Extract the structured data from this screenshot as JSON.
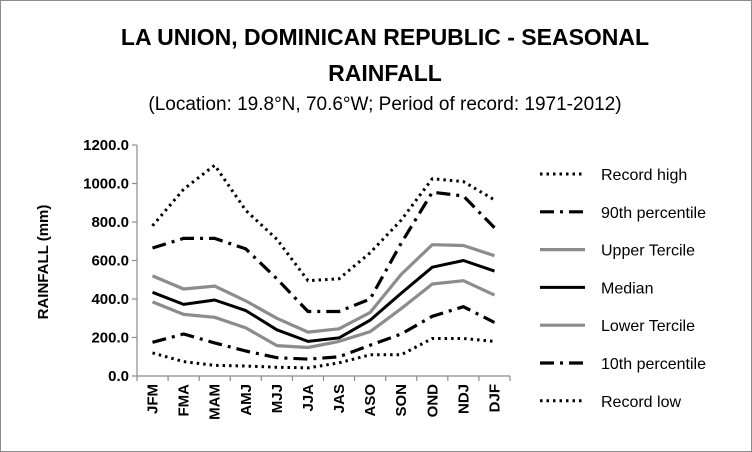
{
  "chart_data": {
    "type": "line",
    "title_line1": "LA UNION, DOMINICAN REPUBLIC - SEASONAL",
    "title_line2": "RAINFALL",
    "subtitle": "(Location: 19.8°N, 70.6°W; Period of record: 1971-2012)",
    "xlabel": "",
    "ylabel": "RAINFALL (mm)",
    "ylim": [
      0,
      1200
    ],
    "yticks": [
      "0.0",
      "200.0",
      "400.0",
      "600.0",
      "800.0",
      "1000.0",
      "1200.0"
    ],
    "categories": [
      "JFM",
      "FMA",
      "MAM",
      "AMJ",
      "MJJ",
      "JJA",
      "JAS",
      "ASO",
      "SON",
      "OND",
      "NDJ",
      "DJF"
    ],
    "legend_position": "right",
    "grid": false,
    "series": [
      {
        "name": "Record high",
        "color": "#000000",
        "style": "dotted",
        "values": [
          780,
          970,
          1095,
          860,
          710,
          495,
          505,
          640,
          810,
          1025,
          1010,
          915
        ]
      },
      {
        "name": "90th percentile",
        "color": "#000000",
        "style": "dashdot",
        "values": [
          665,
          715,
          715,
          660,
          505,
          335,
          335,
          400,
          690,
          955,
          935,
          770
        ]
      },
      {
        "name": "Upper Tercile",
        "color": "#8c8c8c",
        "style": "solid",
        "values": [
          520,
          452,
          467,
          390,
          300,
          228,
          245,
          330,
          528,
          682,
          678,
          625
        ]
      },
      {
        "name": "Median",
        "color": "#000000",
        "style": "solid",
        "values": [
          435,
          372,
          395,
          340,
          240,
          180,
          198,
          290,
          430,
          565,
          600,
          545
        ]
      },
      {
        "name": "Lower Tercile",
        "color": "#8c8c8c",
        "style": "solid",
        "values": [
          385,
          320,
          305,
          250,
          158,
          148,
          180,
          230,
          350,
          478,
          495,
          420
        ]
      },
      {
        "name": "10th percentile",
        "color": "#000000",
        "style": "dashdot",
        "values": [
          175,
          218,
          172,
          130,
          95,
          88,
          100,
          160,
          218,
          310,
          360,
          278
        ]
      },
      {
        "name": "Record low",
        "color": "#000000",
        "style": "dotted",
        "values": [
          120,
          75,
          55,
          52,
          45,
          42,
          68,
          110,
          110,
          195,
          195,
          180
        ]
      }
    ]
  }
}
